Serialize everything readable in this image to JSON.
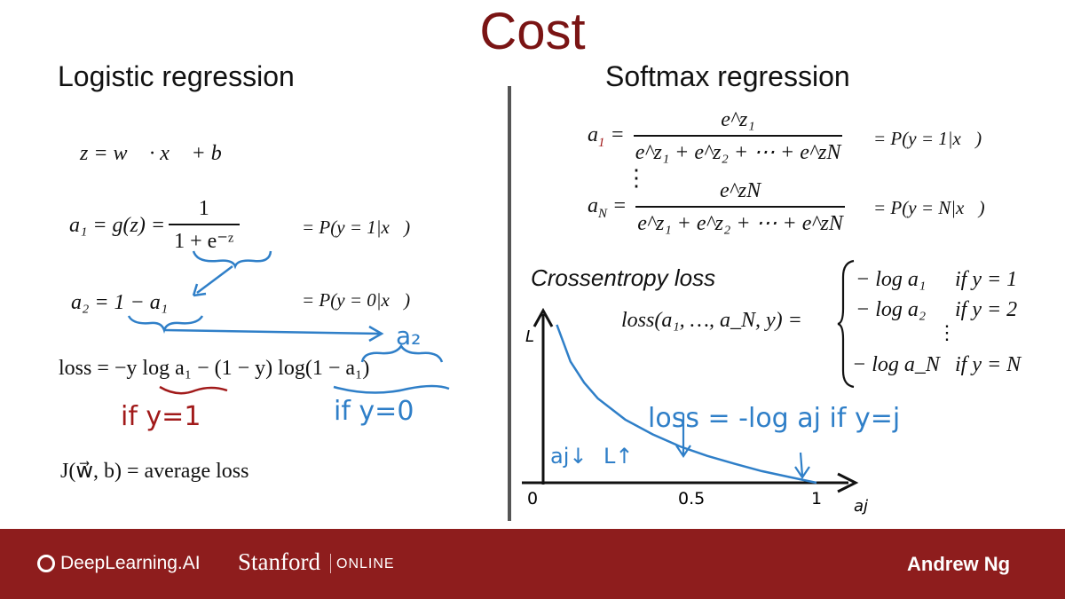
{
  "slide": {
    "title": "Cost",
    "left_heading": "Logistic regression",
    "right_heading": "Softmax regression"
  },
  "logistic": {
    "eq_z": "z = w⃗ · x⃗ + b",
    "a1_lhs": "a₁ = g(z) =",
    "a1_num": "1",
    "a1_den": "1 + e⁻ᶻ",
    "a1_prob": "= P(y = 1|x⃗)",
    "a2_lhs": "a₂ = 1 − a₁",
    "a2_prob": "= P(y = 0|x⃗)",
    "loss": "loss = −y log a₁ − (1 − y) log(1 − a₁)",
    "cost": "J(w⃗, b) = average loss"
  },
  "softmax": {
    "a1_lhs": "a",
    "a1_sub": "1",
    "a1_num": "e^z₁",
    "den": "e^z₁ + e^z₂ + ⋯ + e^zN",
    "a1_prob": "= P(y = 1|x⃗)",
    "vdots": "⋮",
    "aN_lhs": "a",
    "aN_sub": "N",
    "aN_num": "e^zN",
    "aN_prob": "= P(y = N|x⃗)",
    "crossentropy_label": "Crossentropy loss",
    "loss_lhs": "loss(a₁, …, a_N, y) =",
    "cases": [
      {
        "expr": "− log a₁",
        "cond": "if y = 1"
      },
      {
        "expr": "− log a₂",
        "cond": "if y = 2"
      },
      {
        "expr": "⋮",
        "cond": ""
      },
      {
        "expr": "− log a_N",
        "cond": "if y = N"
      }
    ]
  },
  "annotations": {
    "a2_note": "a₂",
    "if_y1": "if y=1",
    "if_y0": "if y=0",
    "softmax_loss_note": "loss = -log aj  if y=j",
    "aj_down": "aj↓",
    "L_up": "L↑"
  },
  "chart_data": {
    "type": "line",
    "xlabel": "aj",
    "ylabel": "L",
    "x_ticks": [
      "0",
      "0.5",
      "1"
    ],
    "series": [
      {
        "x": [
          0.05,
          0.1,
          0.15,
          0.2,
          0.3,
          0.4,
          0.5,
          0.6,
          0.7,
          0.8,
          0.9,
          1.0
        ],
        "y": [
          3.0,
          2.3,
          1.9,
          1.6,
          1.2,
          0.92,
          0.69,
          0.51,
          0.36,
          0.22,
          0.11,
          0.0
        ]
      }
    ],
    "xlim": [
      0,
      1.1
    ],
    "ylim": [
      0,
      3.2
    ]
  },
  "footer": {
    "brand1": "DeepLearning.AI",
    "brand2": "Stanford",
    "brand2_sub": "ONLINE",
    "presenter": "Andrew Ng"
  },
  "colors": {
    "title": "#7a1414",
    "footer": "#8e1d1d",
    "annotation": "#2f7fc8",
    "highlight": "#a11a1a"
  }
}
